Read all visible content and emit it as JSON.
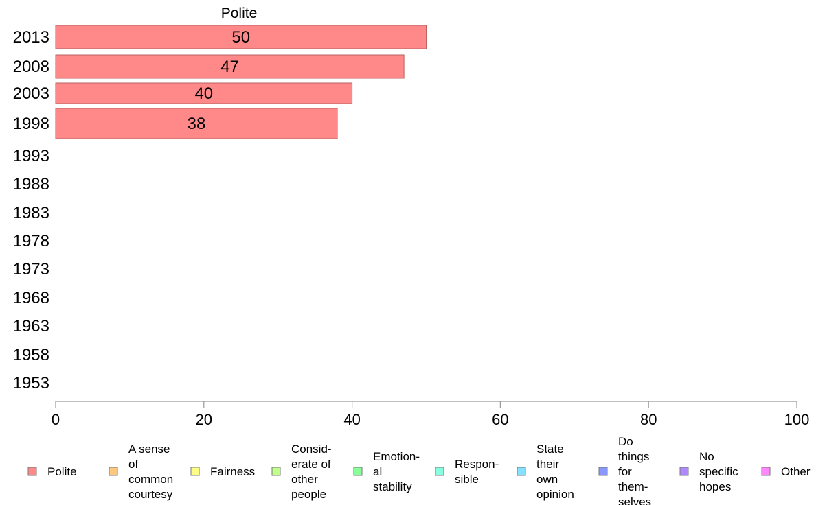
{
  "chart_data": {
    "type": "bar",
    "orientation": "horizontal",
    "title": "Polite",
    "categories": [
      "2013",
      "2008",
      "2003",
      "1998",
      "1993",
      "1988",
      "1983",
      "1978",
      "1973",
      "1968",
      "1963",
      "1958",
      "1953"
    ],
    "series": [
      {
        "name": "Polite",
        "values": [
          50,
          47,
          40,
          38,
          null,
          null,
          null,
          null,
          null,
          null,
          null,
          null,
          null
        ],
        "labels": [
          "50",
          "47",
          "40",
          "38",
          "",
          "",
          "",
          "",
          "",
          "",
          "",
          "",
          ""
        ]
      }
    ],
    "xlim": [
      0,
      100
    ],
    "x_ticks": [
      "0",
      "20",
      "40",
      "60",
      "80",
      "100"
    ],
    "grid": false,
    "legend_position": "bottom",
    "legend": [
      {
        "label": "Polite",
        "color": "#ff8888"
      },
      {
        "label": "A sense of common courtesy",
        "lines": [
          "A sense",
          "of",
          "common",
          "courtesy"
        ],
        "color": "#ffc880"
      },
      {
        "label": "Fairness",
        "lines": [
          "Fairness"
        ],
        "color": "#ffff88"
      },
      {
        "label": "Consid- erate of other people",
        "lines": [
          "Consid-",
          "erate of",
          "other",
          "people"
        ],
        "color": "#c0ff88"
      },
      {
        "label": "Emotion- al stability",
        "lines": [
          "Emotion-",
          "al",
          "stability"
        ],
        "color": "#88ff9a"
      },
      {
        "label": "Respon- sible",
        "lines": [
          "Respon-",
          "sible"
        ],
        "color": "#88ffe0"
      },
      {
        "label": "State their own opinion",
        "lines": [
          "State",
          "their",
          "own",
          "opinion"
        ],
        "color": "#88e0ff"
      },
      {
        "label": "Do things for them- selves",
        "lines": [
          "Do",
          "things",
          "for",
          "them-",
          "selves"
        ],
        "color": "#8898ff"
      },
      {
        "label": "No specific hopes",
        "lines": [
          "No",
          "specific",
          "hopes"
        ],
        "color": "#b088ff"
      },
      {
        "label": "Other",
        "lines": [
          "Other"
        ],
        "color": "#ff88ff"
      }
    ]
  }
}
